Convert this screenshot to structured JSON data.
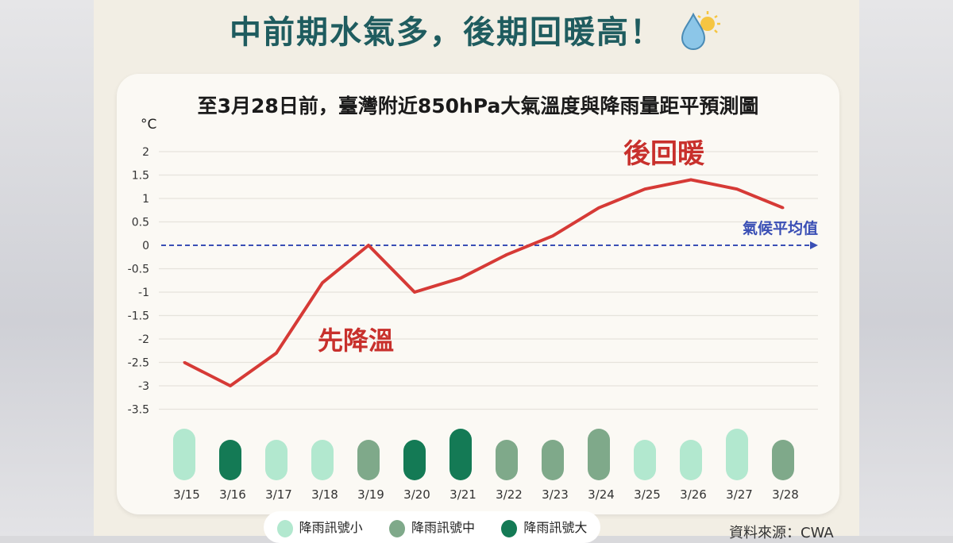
{
  "header": {
    "title": "中前期水氣多，後期回暖高！",
    "icon": "raindrop-sun-icon"
  },
  "chart_data": {
    "type": "line",
    "title": "至3月28日前，臺灣附近850hPa大氣溫度與降雨量距平預測圖",
    "ylabel": "°C",
    "ylim": [
      -3.5,
      2
    ],
    "yticks": [
      "2",
      "1.5",
      "1",
      "0.5",
      "0",
      "-0.5",
      "-1",
      "-1.5",
      "-2",
      "-2.5",
      "-3",
      "-3.5"
    ],
    "categories": [
      "3/15",
      "3/16",
      "3/17",
      "3/18",
      "3/19",
      "3/20",
      "3/21",
      "3/22",
      "3/23",
      "3/24",
      "3/25",
      "3/26",
      "3/27",
      "3/28"
    ],
    "values": [
      -2.5,
      -3,
      -2.3,
      -0.8,
      0,
      -1,
      -0.7,
      -0.2,
      0.2,
      0.8,
      1.2,
      1.4,
      1.2,
      0.8
    ],
    "line_color": "#d63a36",
    "grid": true,
    "reference_line": {
      "value": 0,
      "label": "氣候平均值",
      "color": "#3a4fb5"
    },
    "annotations": [
      "先降溫",
      "後回暖"
    ],
    "rain_signal": {
      "levels": [
        "small",
        "large",
        "small",
        "small",
        "medium",
        "large",
        "large",
        "medium",
        "medium",
        "medium",
        "small",
        "small",
        "small",
        "medium"
      ],
      "size": [
        "tall",
        "short",
        "short",
        "short",
        "short",
        "short",
        "tall",
        "short",
        "short",
        "tall",
        "short",
        "short",
        "tall",
        "short"
      ],
      "colors": {
        "small": "#b2e8cf",
        "medium": "#7fa98a",
        "large": "#147a55"
      },
      "legend": [
        {
          "key": "small",
          "label": "降雨訊號小"
        },
        {
          "key": "medium",
          "label": "降雨訊號中"
        },
        {
          "key": "large",
          "label": "降雨訊號大"
        }
      ],
      "legend_position": "bottom"
    }
  },
  "footer": {
    "source": "資料來源：CWA"
  }
}
